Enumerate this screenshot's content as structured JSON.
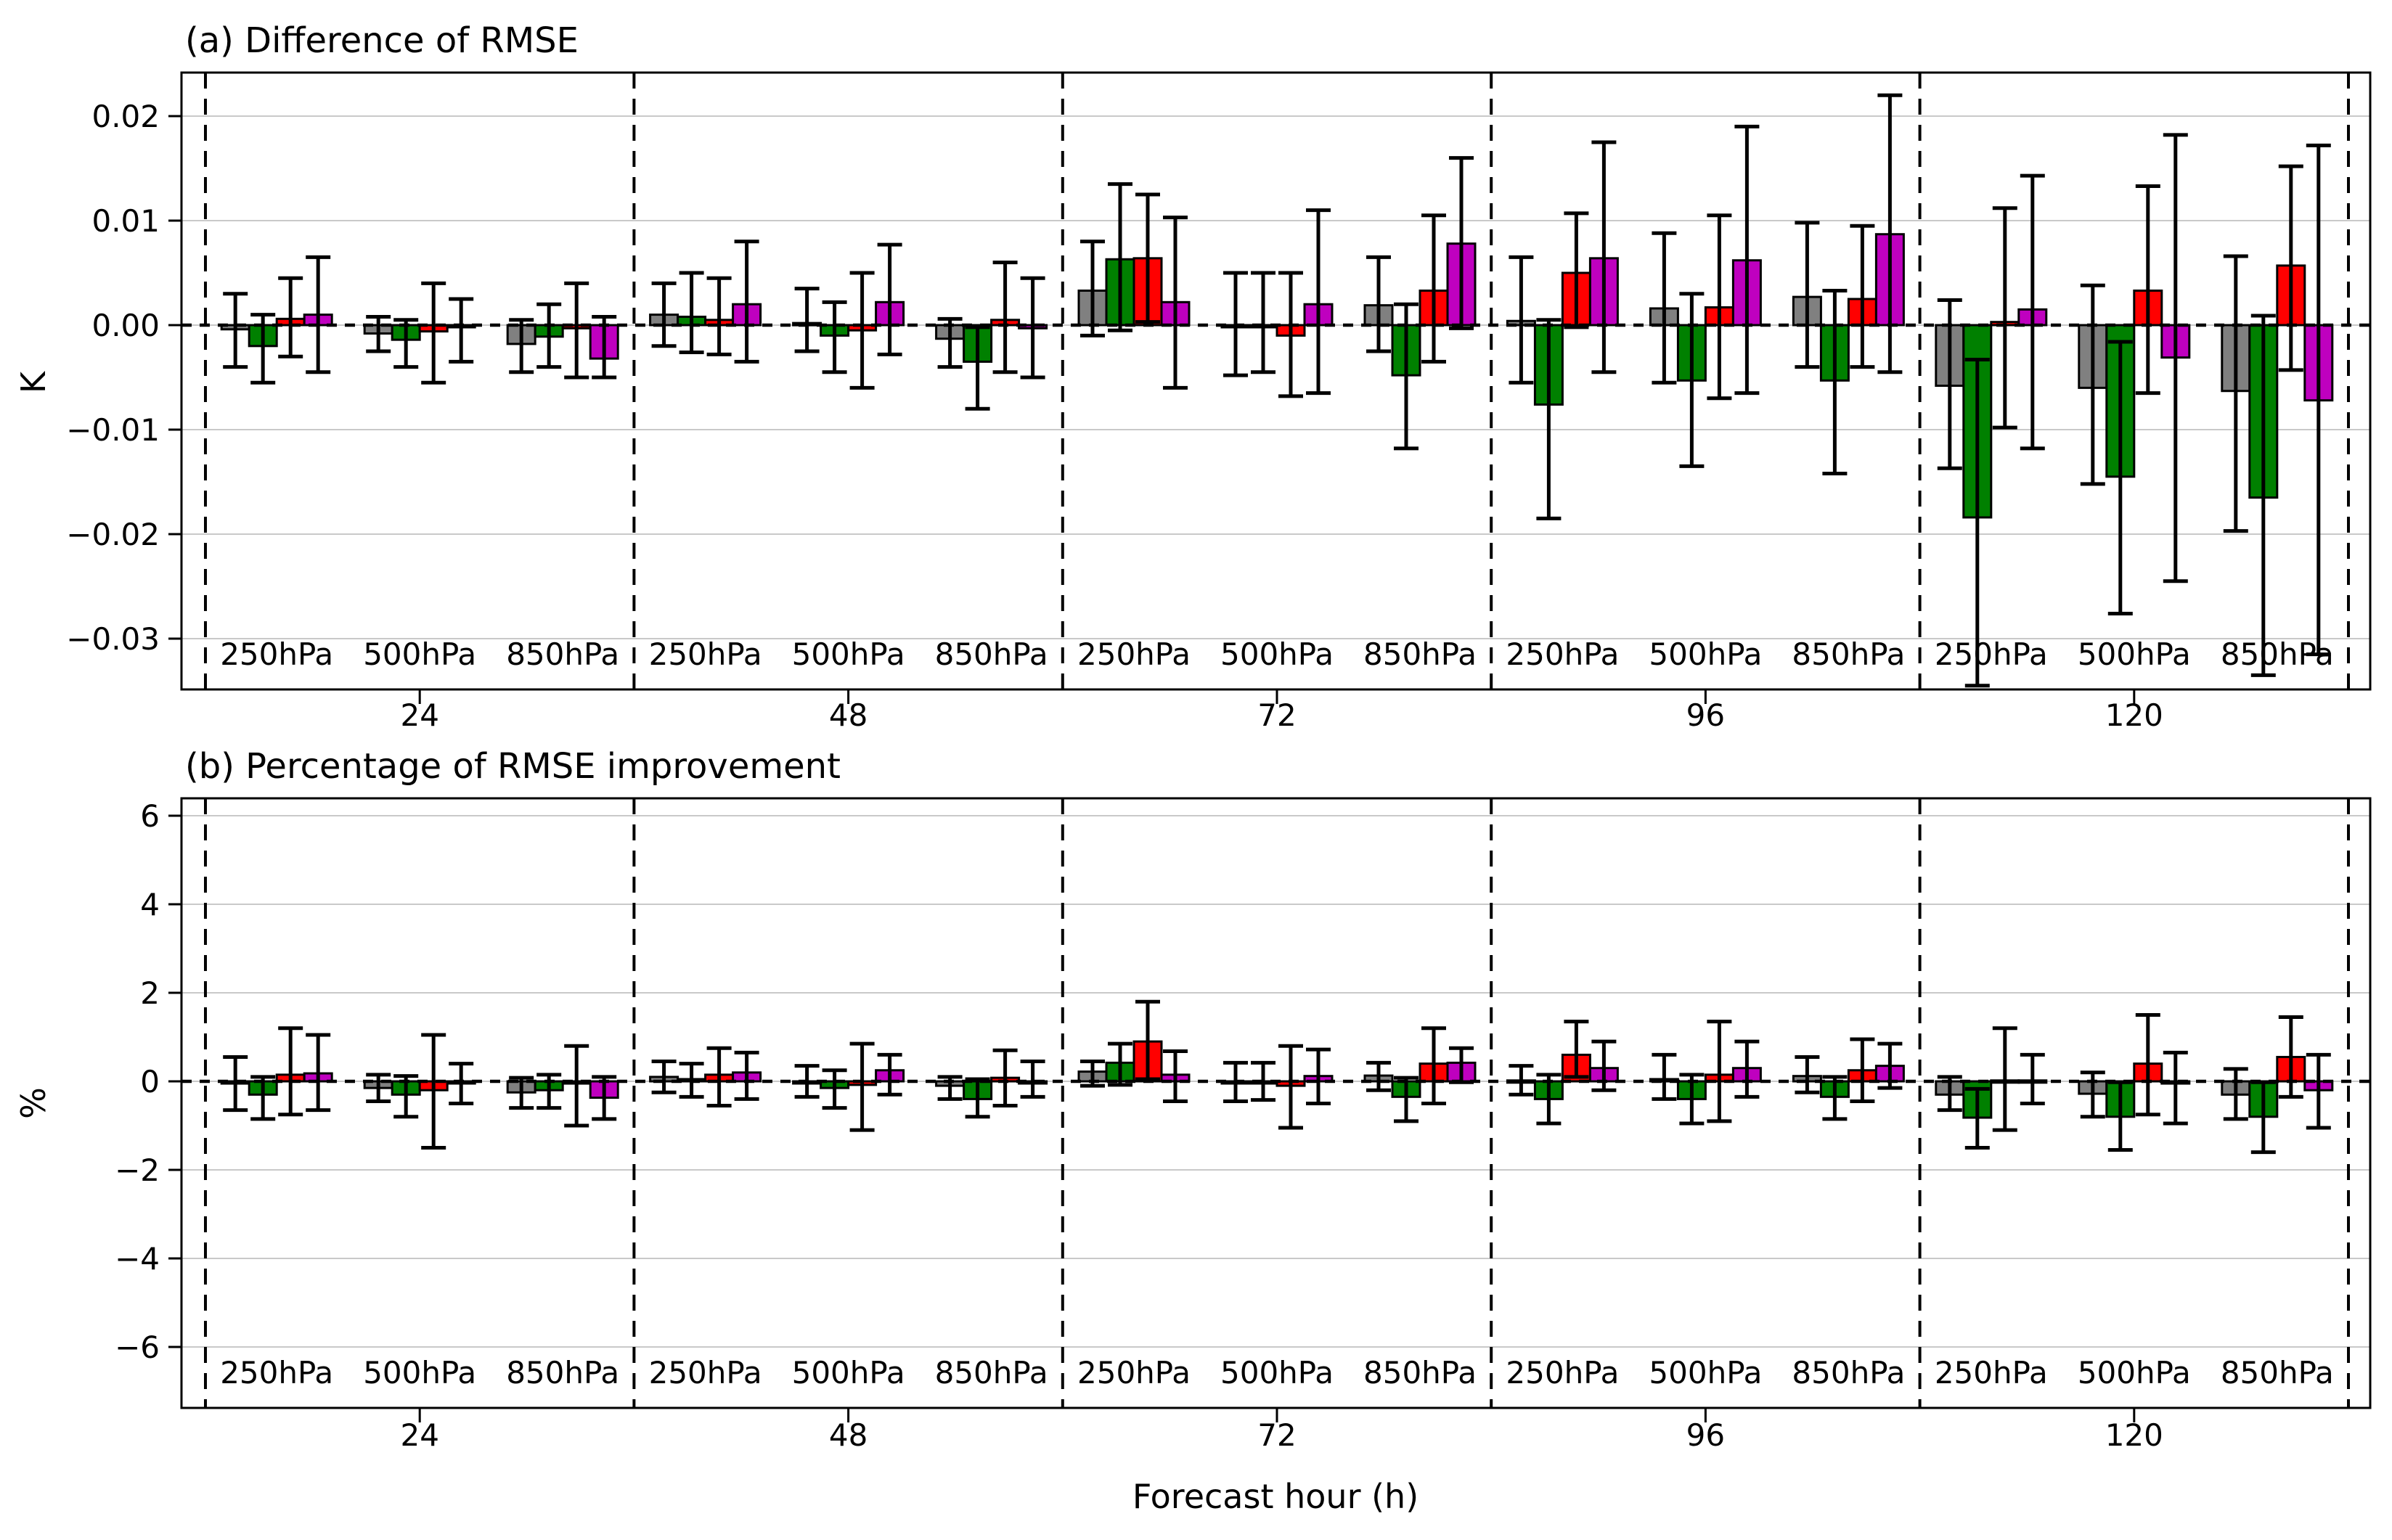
{
  "chart_data": [
    {
      "panel": "a",
      "type": "bar",
      "title": "(a) Difference of RMSE",
      "ylabel": "K",
      "ytick_values": [
        0.02,
        0.01,
        0,
        -0.01,
        -0.02,
        -0.03
      ],
      "ytick_labels": [
        "0.02",
        "0.01",
        "0.00",
        "−0.01",
        "−0.02",
        "−0.03"
      ],
      "ylim": [
        -0.0354,
        0.0244
      ],
      "grid": true,
      "zero_line_dashed": true,
      "group_separators_dashed": true,
      "legend_position": "none",
      "groups": [
        "24",
        "48",
        "72",
        "96",
        "120"
      ],
      "subgroups": [
        "250hPa",
        "500hPa",
        "850hPa"
      ],
      "series": [
        "gray",
        "green",
        "red",
        "magenta"
      ],
      "series_colors": [
        "#808080",
        "#008000",
        "#ff0000",
        "#bf00bf"
      ],
      "bars_value_lo_hi": [
        [
          [
            [
              -0.0004,
              -0.004,
              0.003
            ],
            [
              -0.002,
              -0.0055,
              0.001
            ],
            [
              0.0006,
              -0.003,
              0.0045
            ],
            [
              0.001,
              -0.0045,
              0.0065
            ]
          ],
          [
            [
              -0.0008,
              -0.0025,
              0.0008
            ],
            [
              -0.0014,
              -0.004,
              0.0005
            ],
            [
              -0.0006,
              -0.0055,
              0.004
            ],
            [
              -0.0002,
              -0.0035,
              0.0025
            ]
          ],
          [
            [
              -0.0018,
              -0.0045,
              0.0005
            ],
            [
              -0.0011,
              -0.004,
              0.002
            ],
            [
              -0.0003,
              -0.005,
              0.004
            ],
            [
              -0.0032,
              -0.005,
              0.0008
            ]
          ]
        ],
        [
          [
            [
              0.001,
              -0.002,
              0.004
            ],
            [
              0.0008,
              -0.0026,
              0.005
            ],
            [
              0.0005,
              -0.0028,
              0.0045
            ],
            [
              0.002,
              -0.0035,
              0.008
            ]
          ],
          [
            [
              0.0002,
              -0.0025,
              0.0035
            ],
            [
              -0.001,
              -0.0045,
              0.0022
            ],
            [
              -0.0005,
              -0.006,
              0.005
            ],
            [
              0.0022,
              -0.0028,
              0.0077
            ]
          ],
          [
            [
              -0.0013,
              -0.004,
              0.0006
            ],
            [
              -0.0035,
              -0.008,
              -0.0002
            ],
            [
              0.0005,
              -0.0045,
              0.006
            ],
            [
              -0.0003,
              -0.005,
              0.0045
            ]
          ]
        ],
        [
          [
            [
              0.0033,
              -0.001,
              0.008
            ],
            [
              0.0063,
              -0.0005,
              0.0135
            ],
            [
              0.0064,
              0.0003,
              0.0125
            ],
            [
              0.0022,
              -0.006,
              0.0103
            ]
          ],
          [
            [
              0.0,
              -0.0048,
              0.005
            ],
            [
              -0.0001,
              -0.0045,
              0.005
            ],
            [
              -0.001,
              -0.0068,
              0.005
            ],
            [
              0.002,
              -0.0065,
              0.011
            ]
          ],
          [
            [
              0.0019,
              -0.0025,
              0.0065
            ],
            [
              -0.0048,
              -0.0118,
              0.002
            ],
            [
              0.0033,
              -0.0035,
              0.0105
            ],
            [
              0.0078,
              -0.0003,
              0.016
            ]
          ]
        ],
        [
          [
            [
              0.0004,
              -0.0055,
              0.0065
            ],
            [
              -0.0076,
              -0.0185,
              0.0005
            ],
            [
              0.005,
              -0.0002,
              0.0107
            ],
            [
              0.0064,
              -0.0045,
              0.0175
            ]
          ],
          [
            [
              0.0016,
              -0.0055,
              0.0088
            ],
            [
              -0.0053,
              -0.0135,
              0.003
            ],
            [
              0.0017,
              -0.007,
              0.0105
            ],
            [
              0.0062,
              -0.0065,
              0.019
            ]
          ],
          [
            [
              0.0027,
              -0.004,
              0.0098
            ],
            [
              -0.0053,
              -0.0142,
              0.0033
            ],
            [
              0.0025,
              -0.004,
              0.0095
            ],
            [
              0.0087,
              -0.0045,
              0.022
            ]
          ]
        ],
        [
          [
            [
              -0.0058,
              -0.0137,
              0.0024
            ],
            [
              -0.0184,
              -0.0345,
              -0.0033
            ],
            [
              0.0003,
              -0.0098,
              0.0112
            ],
            [
              0.0015,
              -0.0118,
              0.0143
            ]
          ],
          [
            [
              -0.006,
              -0.0152,
              0.0038
            ],
            [
              -0.0145,
              -0.0276,
              -0.0016
            ],
            [
              0.0033,
              -0.0065,
              0.0133
            ],
            [
              -0.0031,
              -0.0245,
              0.0182
            ]
          ],
          [
            [
              -0.0063,
              -0.0197,
              0.0066
            ],
            [
              -0.0165,
              -0.0335,
              0.0009
            ],
            [
              0.0057,
              -0.0043,
              0.0152
            ],
            [
              -0.0072,
              -0.0315,
              0.0172
            ]
          ]
        ]
      ]
    },
    {
      "panel": "b",
      "type": "bar",
      "title": "(b) Percentage of RMSE improvement",
      "ylabel": "%",
      "xlabel": "Forecast hour (h)",
      "ytick_values": [
        6,
        4,
        2,
        0,
        -2,
        -4,
        -6
      ],
      "ytick_labels": [
        "6",
        "4",
        "2",
        "0",
        "−2",
        "−4",
        "−6"
      ],
      "ylim": [
        -7.3,
        6.4
      ],
      "grid": true,
      "zero_line_dashed": true,
      "group_separators_dashed": true,
      "legend_position": "none",
      "groups": [
        "24",
        "48",
        "72",
        "96",
        "120"
      ],
      "subgroups": [
        "250hPa",
        "500hPa",
        "850hPa"
      ],
      "series": [
        "gray",
        "green",
        "red",
        "magenta"
      ],
      "series_colors": [
        "#808080",
        "#008000",
        "#ff0000",
        "#bf00bf"
      ],
      "bars_value_lo_hi": [
        [
          [
            [
              -0.05,
              -0.65,
              0.55
            ],
            [
              -0.3,
              -0.85,
              0.1
            ],
            [
              0.15,
              -0.75,
              1.2
            ],
            [
              0.18,
              -0.65,
              1.05
            ]
          ],
          [
            [
              -0.15,
              -0.45,
              0.15
            ],
            [
              -0.3,
              -0.8,
              0.12
            ],
            [
              -0.2,
              -1.5,
              1.05
            ],
            [
              -0.02,
              -0.5,
              0.4
            ]
          ],
          [
            [
              -0.25,
              -0.6,
              0.08
            ],
            [
              -0.2,
              -0.6,
              0.15
            ],
            [
              -0.05,
              -1.0,
              0.8
            ],
            [
              -0.37,
              -0.85,
              0.1
            ]
          ]
        ],
        [
          [
            [
              0.1,
              -0.25,
              0.45
            ],
            [
              0.05,
              -0.35,
              0.4
            ],
            [
              0.15,
              -0.55,
              0.75
            ],
            [
              0.2,
              -0.4,
              0.65
            ]
          ],
          [
            [
              0.0,
              -0.35,
              0.35
            ],
            [
              -0.15,
              -0.6,
              0.25
            ],
            [
              -0.08,
              -1.1,
              0.85
            ],
            [
              0.25,
              -0.3,
              0.6
            ]
          ],
          [
            [
              -0.1,
              -0.4,
              0.1
            ],
            [
              -0.4,
              -0.8,
              0.05
            ],
            [
              0.08,
              -0.55,
              0.7
            ],
            [
              0.0,
              -0.35,
              0.45
            ]
          ]
        ],
        [
          [
            [
              0.22,
              -0.1,
              0.45
            ],
            [
              0.42,
              -0.08,
              0.85
            ],
            [
              0.9,
              0.05,
              1.8
            ],
            [
              0.15,
              -0.45,
              0.68
            ]
          ],
          [
            [
              0.0,
              -0.45,
              0.42
            ],
            [
              -0.02,
              -0.42,
              0.42
            ],
            [
              -0.1,
              -1.05,
              0.8
            ],
            [
              0.12,
              -0.5,
              0.72
            ]
          ],
          [
            [
              0.13,
              -0.2,
              0.42
            ],
            [
              -0.35,
              -0.9,
              0.08
            ],
            [
              0.4,
              -0.5,
              1.2
            ],
            [
              0.42,
              -0.02,
              0.75
            ]
          ]
        ],
        [
          [
            [
              0.02,
              -0.3,
              0.35
            ],
            [
              -0.4,
              -0.95,
              0.15
            ],
            [
              0.6,
              0.1,
              1.35
            ],
            [
              0.3,
              -0.2,
              0.9
            ]
          ],
          [
            [
              0.05,
              -0.4,
              0.6
            ],
            [
              -0.4,
              -0.95,
              0.15
            ],
            [
              0.15,
              -0.9,
              1.35
            ],
            [
              0.3,
              -0.35,
              0.9
            ]
          ],
          [
            [
              0.12,
              -0.25,
              0.55
            ],
            [
              -0.35,
              -0.85,
              0.1
            ],
            [
              0.25,
              -0.45,
              0.95
            ],
            [
              0.35,
              -0.15,
              0.85
            ]
          ]
        ],
        [
          [
            [
              -0.3,
              -0.65,
              0.1
            ],
            [
              -0.82,
              -1.5,
              -0.17
            ],
            [
              0.02,
              -1.1,
              1.2
            ],
            [
              0.02,
              -0.5,
              0.6
            ]
          ],
          [
            [
              -0.28,
              -0.8,
              0.2
            ],
            [
              -0.8,
              -1.55,
              -0.02
            ],
            [
              0.4,
              -0.75,
              1.5
            ],
            [
              -0.05,
              -0.95,
              0.65
            ]
          ],
          [
            [
              -0.3,
              -0.85,
              0.28
            ],
            [
              -0.8,
              -1.6,
              -0.02
            ],
            [
              0.55,
              -0.35,
              1.45
            ],
            [
              -0.2,
              -1.05,
              0.6
            ]
          ]
        ]
      ]
    }
  ]
}
